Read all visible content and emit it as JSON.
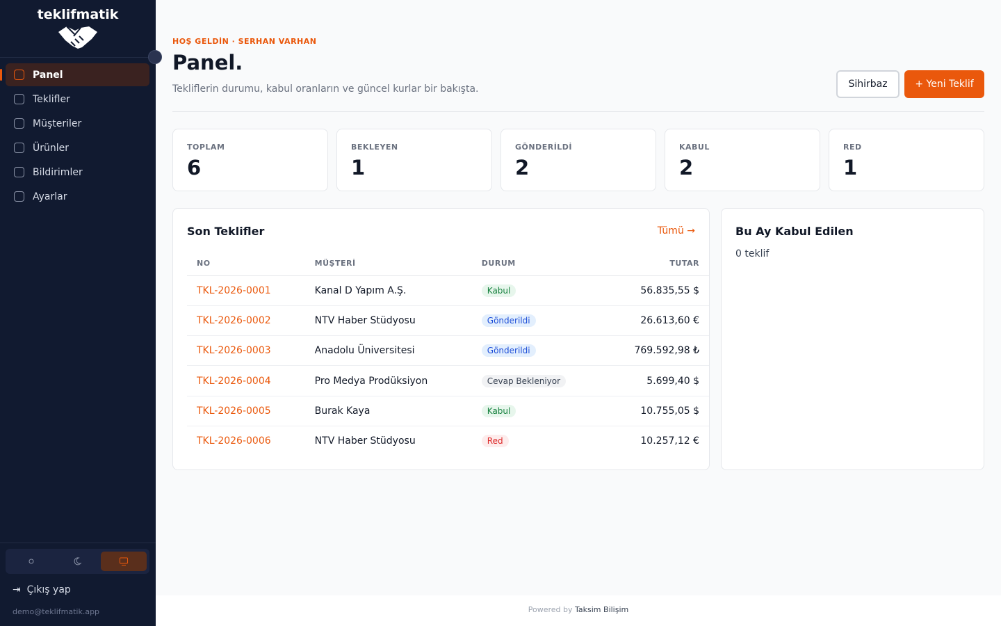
{
  "sidebar": {
    "brand": "teklifmatik",
    "nav": [
      {
        "label": "Panel"
      },
      {
        "label": "Teklifler"
      },
      {
        "label": "Müşteriler"
      },
      {
        "label": "Ürünler"
      },
      {
        "label": "Bildirimler"
      },
      {
        "label": "Ayarlar"
      }
    ],
    "logout": "Çıkış yap",
    "email": "demo@teklifmatik.app"
  },
  "header": {
    "greeting": "HOŞ GELDİN · SERHAN VARHAN",
    "title": "Panel.",
    "subtitle": "Tekliflerin durumu, kabul oranların ve güncel kurlar bir bakışta.",
    "wizard_button": "Sihirbaz",
    "new_button": "+ Yeni Teklif"
  },
  "stats": [
    {
      "label": "TOPLAM",
      "value": 6
    },
    {
      "label": "BEKLEYEN",
      "value": 1
    },
    {
      "label": "GÖNDERİLDİ",
      "value": 2
    },
    {
      "label": "KABUL",
      "value": 2
    },
    {
      "label": "RED",
      "value": 1
    }
  ],
  "recent": {
    "title": "Son Teklifler",
    "link": "Tümü →",
    "columns": [
      "NO",
      "MÜŞTERİ",
      "DURUM",
      "TUTAR"
    ],
    "rows": [
      {
        "no": "TKL-2026-0001",
        "customer": "Kanal D Yapım A.Ş.",
        "status": "Kabul",
        "amount": "56.835,55 $",
        "status_color": "#15803d",
        "status_bg": "#e7f6ec"
      },
      {
        "no": "TKL-2026-0002",
        "customer": "NTV Haber Stüdyosu",
        "status": "Gönderildi",
        "amount": "26.613,60 €",
        "status_color": "#1d4ed8",
        "status_bg": "#e3effd"
      },
      {
        "no": "TKL-2026-0003",
        "customer": "Anadolu Üniversitesi",
        "status": "Gönderildi",
        "amount": "769.592,98 ₺",
        "status_color": "#1d4ed8",
        "status_bg": "#e3effd"
      },
      {
        "no": "TKL-2026-0004",
        "customer": "Pro Medya Prodüksiyon",
        "status": "Cevap Bekleniyor",
        "amount": "5.699,40 $",
        "status_color": "#374151",
        "status_bg": "#f1f2f4"
      },
      {
        "no": "TKL-2026-0005",
        "customer": "Burak Kaya",
        "status": "Kabul",
        "amount": "10.755,05 $",
        "status_color": "#15803d",
        "status_bg": "#e7f6ec"
      },
      {
        "no": "TKL-2026-0006",
        "customer": "NTV Haber Stüdyosu",
        "status": "Red",
        "amount": "10.257,12 €",
        "status_color": "#dc2626",
        "status_bg": "#fdecec"
      }
    ]
  },
  "accepted": {
    "title": "Bu Ay Kabul Edilen",
    "text": "0 teklif"
  },
  "footer": {
    "prefix": "Powered by",
    "company": "Taksim Bilişim"
  }
}
